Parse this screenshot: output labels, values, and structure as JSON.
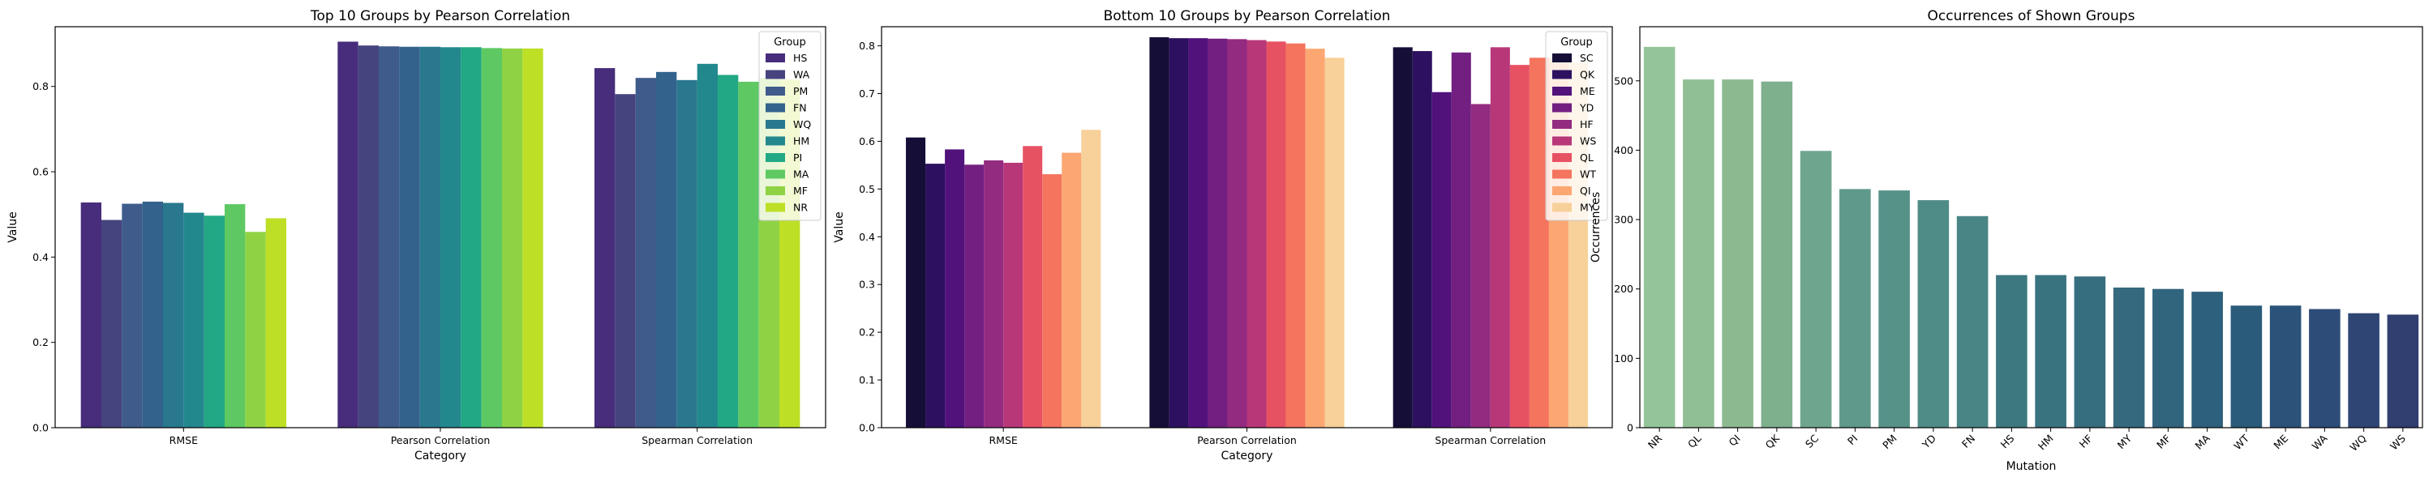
{
  "chart_data": [
    {
      "type": "bar",
      "title": "Top 10 Groups by Pearson Correlation",
      "xlabel": "Category",
      "ylabel": "Value",
      "ylim": [
        0,
        0.94
      ],
      "yticks": [
        0.0,
        0.2,
        0.4,
        0.6,
        0.8
      ],
      "categories": [
        "RMSE",
        "Pearson Correlation",
        "Spearman Correlation"
      ],
      "legend_title": "Group",
      "legend_position": "top-right",
      "series": [
        {
          "name": "HS",
          "color": "#472d7b",
          "values": [
            0.528,
            0.905,
            0.843
          ]
        },
        {
          "name": "WA",
          "color": "#46447f",
          "values": [
            0.487,
            0.896,
            0.782
          ]
        },
        {
          "name": "PM",
          "color": "#3e5b8b",
          "values": [
            0.525,
            0.894,
            0.82
          ]
        },
        {
          "name": "FN",
          "color": "#33638d",
          "values": [
            0.53,
            0.893,
            0.834
          ]
        },
        {
          "name": "WQ",
          "color": "#29788e",
          "values": [
            0.527,
            0.893,
            0.815
          ]
        },
        {
          "name": "HM",
          "color": "#23888e",
          "values": [
            0.504,
            0.892,
            0.853
          ]
        },
        {
          "name": "PI",
          "color": "#22a884",
          "values": [
            0.497,
            0.892,
            0.827
          ]
        },
        {
          "name": "MA",
          "color": "#5ec962",
          "values": [
            0.524,
            0.89,
            0.811
          ]
        },
        {
          "name": "MF",
          "color": "#8fd344",
          "values": [
            0.459,
            0.889,
            0.82
          ]
        },
        {
          "name": "NR",
          "color": "#bddf26",
          "values": [
            0.491,
            0.889,
            0.816
          ]
        }
      ]
    },
    {
      "type": "bar",
      "title": "Bottom 10 Groups by Pearson Correlation",
      "xlabel": "Category",
      "ylabel": "Value",
      "ylim": [
        0,
        0.84
      ],
      "yticks": [
        0.0,
        0.1,
        0.2,
        0.3,
        0.4,
        0.5,
        0.6,
        0.7,
        0.8
      ],
      "categories": [
        "RMSE",
        "Pearson Correlation",
        "Spearman Correlation"
      ],
      "legend_title": "Group",
      "legend_position": "top-right",
      "series": [
        {
          "name": "SC",
          "color": "#150e37",
          "values": [
            0.608,
            0.818,
            0.797
          ]
        },
        {
          "name": "QK",
          "color": "#2d1160",
          "values": [
            0.553,
            0.816,
            0.789
          ]
        },
        {
          "name": "ME",
          "color": "#51127c",
          "values": [
            0.583,
            0.816,
            0.703
          ]
        },
        {
          "name": "YD",
          "color": "#721f81",
          "values": [
            0.551,
            0.815,
            0.786
          ]
        },
        {
          "name": "HF",
          "color": "#932b80",
          "values": [
            0.56,
            0.814,
            0.678
          ]
        },
        {
          "name": "WS",
          "color": "#b73779",
          "values": [
            0.555,
            0.812,
            0.797
          ]
        },
        {
          "name": "QL",
          "color": "#e75263",
          "values": [
            0.59,
            0.809,
            0.76
          ]
        },
        {
          "name": "WT",
          "color": "#f4745e",
          "values": [
            0.531,
            0.805,
            0.775
          ]
        },
        {
          "name": "QI",
          "color": "#fca772",
          "values": [
            0.576,
            0.794,
            0.775
          ]
        },
        {
          "name": "MY",
          "color": "#f7d09a",
          "values": [
            0.624,
            0.775,
            0.765
          ]
        }
      ]
    },
    {
      "type": "bar",
      "title": "Occurrences of Shown Groups",
      "xlabel": "Mutation",
      "ylabel": "Occurrences",
      "ylim": [
        0,
        578
      ],
      "yticks": [
        0,
        100,
        200,
        300,
        400,
        500
      ],
      "categories": [
        "NR",
        "QL",
        "QI",
        "QK",
        "SC",
        "PI",
        "PM",
        "YD",
        "FN",
        "HS",
        "HM",
        "HF",
        "MY",
        "MF",
        "MA",
        "WT",
        "ME",
        "WA",
        "WQ",
        "WS"
      ],
      "values": [
        549,
        502,
        502,
        499,
        399,
        344,
        342,
        328,
        305,
        220,
        220,
        218,
        202,
        200,
        196,
        176,
        176,
        171,
        165,
        163
      ],
      "colors": [
        "#94c59a",
        "#91bf95",
        "#8db991",
        "#7fb08e",
        "#6ea58e",
        "#5e998c",
        "#579289",
        "#508c87",
        "#4a8585",
        "#3d7881",
        "#3a7380",
        "#376e7f",
        "#34697e",
        "#31657d",
        "#2d607c",
        "#2a5b7b",
        "#2b537a",
        "#2d4c78",
        "#2f4574",
        "#303e70"
      ]
    }
  ]
}
